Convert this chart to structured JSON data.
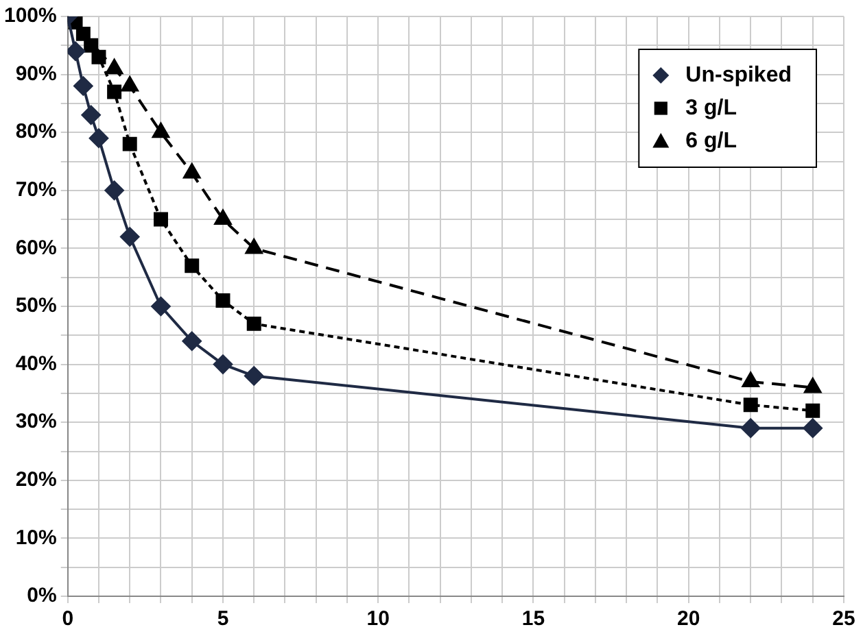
{
  "chart_data": {
    "type": "line",
    "xlim": [
      0,
      25
    ],
    "xticks": [
      0,
      {
        "value": 1,
        "label": null
      },
      {
        "value": 2,
        "label": null
      },
      {
        "value": 3,
        "label": null
      },
      {
        "value": 4,
        "label": null
      },
      5,
      {
        "value": 6,
        "label": null
      },
      {
        "value": 7,
        "label": null
      },
      {
        "value": 8,
        "label": null
      },
      {
        "value": 9,
        "label": null
      },
      10,
      {
        "value": 11,
        "label": null
      },
      {
        "value": 12,
        "label": null
      },
      {
        "value": 13,
        "label": null
      },
      {
        "value": 14,
        "label": null
      },
      15,
      {
        "value": 16,
        "label": null
      },
      {
        "value": 17,
        "label": null
      },
      {
        "value": 18,
        "label": null
      },
      {
        "value": 19,
        "label": null
      },
      20,
      {
        "value": 21,
        "label": null
      },
      {
        "value": 22,
        "label": null
      },
      {
        "value": 23,
        "label": null
      },
      {
        "value": 24,
        "label": null
      },
      25
    ],
    "ylim": [
      0,
      100
    ],
    "yticks": [
      {
        "value": 0,
        "label": "0%"
      },
      {
        "value": 5,
        "label": null
      },
      {
        "value": 10,
        "label": "10%"
      },
      {
        "value": 15,
        "label": null
      },
      {
        "value": 20,
        "label": "20%"
      },
      {
        "value": 25,
        "label": null
      },
      {
        "value": 30,
        "label": "30%"
      },
      {
        "value": 35,
        "label": null
      },
      {
        "value": 40,
        "label": "40%"
      },
      {
        "value": 45,
        "label": null
      },
      {
        "value": 50,
        "label": "50%"
      },
      {
        "value": 55,
        "label": null
      },
      {
        "value": 60,
        "label": "60%"
      },
      {
        "value": 65,
        "label": null
      },
      {
        "value": 70,
        "label": "70%"
      },
      {
        "value": 75,
        "label": null
      },
      {
        "value": 80,
        "label": "80%"
      },
      {
        "value": 85,
        "label": null
      },
      {
        "value": 90,
        "label": "90%"
      },
      {
        "value": 95,
        "label": null
      },
      {
        "value": 100,
        "label": "100%"
      }
    ],
    "grid": true,
    "legend": "top right",
    "series": [
      {
        "name": "Un-spiked",
        "color": "#1f2a44",
        "marker": "diamond",
        "line_style": "solid",
        "x": [
          0,
          0.25,
          0.5,
          0.75,
          1,
          1.5,
          2,
          3,
          4,
          5,
          6,
          22,
          24
        ],
        "values": [
          100,
          94,
          88,
          83,
          79,
          70,
          62,
          50,
          44,
          40,
          38,
          29,
          29
        ]
      },
      {
        "name": "3 g/L",
        "color": "#000000",
        "marker": "square",
        "line_style": "dotted",
        "x": [
          0,
          0.25,
          0.5,
          0.75,
          1,
          1.5,
          2,
          3,
          4,
          5,
          6,
          22,
          24
        ],
        "values": [
          100,
          99,
          97,
          95,
          93,
          87,
          78,
          65,
          57,
          51,
          47,
          33,
          32
        ]
      },
      {
        "name": "6 g/L",
        "color": "#000000",
        "marker": "triangle",
        "line_style": "dashed",
        "x": [
          0,
          1.5,
          2,
          3,
          4,
          5,
          6,
          22,
          24
        ],
        "values": [
          100,
          91,
          88,
          80,
          73,
          65,
          60,
          37,
          36
        ]
      }
    ]
  }
}
